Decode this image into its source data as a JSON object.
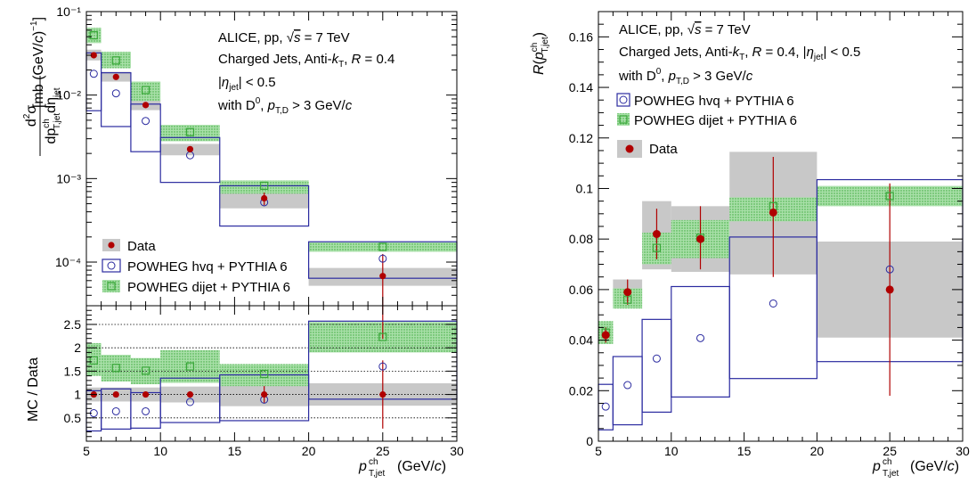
{
  "figure": {
    "colors": {
      "data": "#b00000",
      "hvq": "#2b2ba0",
      "dijet": "#3aa83a",
      "dijet_fill": "#7fd07f",
      "data_band": "#c8c8c8",
      "axis": "#000000"
    },
    "series_names": {
      "data": "Data",
      "hvq": "POWHEG hvq + PYTHIA 6",
      "dijet": "POWHEG dijet + PYTHIA 6"
    },
    "text": {
      "left_ylabel": "d²σ / dpT,jetch dηjet [mb (GeV/c)⁻¹]",
      "ratio_ylabel": "MC / Data",
      "right_ylabel": "R(pT,jetch)",
      "xlabel_main": "p",
      "xlabel_sup": "ch",
      "xlabel_sub": "T,jet",
      "xlabel_unit": "(GeV/c)",
      "ann_left_1": "ALICE, pp, √s = 7 TeV",
      "ann_left_2": "Charged Jets, Anti-kT, R = 0.4",
      "ann_left_3": "|ηjet| < 0.5",
      "ann_left_4": "with D⁰, pT,D > 3 GeV/c",
      "ann_right_1": "ALICE, pp, √s = 7 TeV",
      "ann_right_2": "Charged Jets, Anti-kT, R = 0.4, |ηjet| < 0.5",
      "ann_right_3": "with D⁰, pT,D > 3 GeV/c"
    }
  },
  "chart_data": [
    {
      "type": "scatter",
      "panel": "left-top",
      "yscale": "log",
      "xlim": [
        5,
        30
      ],
      "ylim": [
        3e-05,
        0.1
      ],
      "xticks": [
        5,
        10,
        15,
        20,
        25,
        30
      ],
      "yticks": [
        "10⁻⁴",
        "10⁻³",
        "10⁻²",
        "10⁻¹"
      ],
      "bins": [
        [
          5,
          6
        ],
        [
          6,
          8
        ],
        [
          8,
          10
        ],
        [
          10,
          14
        ],
        [
          14,
          20
        ],
        [
          20,
          30
        ]
      ],
      "centers": [
        5.5,
        7,
        9,
        12,
        17,
        25
      ],
      "series": [
        {
          "name": "Data",
          "values": [
            0.03,
            0.0165,
            0.0076,
            0.00225,
            0.00058,
            6.8e-05
          ],
          "syst_low": [
            0.026,
            0.0145,
            0.0066,
            0.0019,
            0.00044,
            5.2e-05
          ],
          "syst_high": [
            0.035,
            0.019,
            0.0088,
            0.0026,
            0.00072,
            8.5e-05
          ],
          "stat_low": [
            0.0285,
            0.0158,
            0.0072,
            0.0021,
            0.00048,
            1.2e-05
          ],
          "stat_high": [
            0.0315,
            0.0172,
            0.008,
            0.0024,
            0.00068,
            0.000125
          ]
        },
        {
          "name": "POWHEG hvq + PYTHIA 6",
          "values": [
            0.018,
            0.0105,
            0.0049,
            0.0019,
            0.00052,
            0.00011
          ],
          "band_low": [
            0.0065,
            0.0042,
            0.0021,
            0.0009,
            0.00027,
            6.4e-05
          ],
          "band_high": [
            0.032,
            0.0185,
            0.0078,
            0.0031,
            0.00082,
            0.000175
          ]
        },
        {
          "name": "POWHEG dijet + PYTHIA 6",
          "values": [
            0.052,
            0.026,
            0.0115,
            0.0036,
            0.00082,
            0.000152
          ],
          "band_low": [
            0.042,
            0.021,
            0.0085,
            0.0028,
            0.00066,
            0.000133
          ],
          "band_high": [
            0.064,
            0.033,
            0.0145,
            0.0044,
            0.00095,
            0.000172
          ]
        }
      ]
    },
    {
      "type": "scatter",
      "panel": "left-ratio",
      "ylabel": "MC / Data",
      "xlim": [
        5,
        30
      ],
      "ylim": [
        0,
        2.9
      ],
      "yticks": [
        0.5,
        1,
        1.5,
        2,
        2.5
      ],
      "xticks": [
        5,
        10,
        15,
        20,
        25,
        30
      ],
      "centers": [
        5.5,
        7,
        9,
        12,
        17,
        25
      ],
      "series": [
        {
          "name": "Data",
          "values": [
            1,
            1,
            1,
            1,
            1,
            1
          ],
          "band_low": [
            0.85,
            0.85,
            0.85,
            0.83,
            0.75,
            0.76
          ],
          "band_high": [
            1.15,
            1.15,
            1.15,
            1.17,
            1.25,
            1.24
          ],
          "stat_low": [
            0.95,
            0.96,
            0.94,
            0.93,
            0.82,
            0.27
          ],
          "stat_high": [
            1.05,
            1.04,
            1.06,
            1.07,
            1.18,
            1.73
          ]
        },
        {
          "name": "POWHEG hvq + PYTHIA 6",
          "values": [
            0.6,
            0.64,
            0.64,
            0.84,
            0.89,
            1.6
          ],
          "band_low": [
            0.22,
            0.26,
            0.28,
            0.4,
            0.44,
            0.9
          ],
          "band_high": [
            1.08,
            1.12,
            1.04,
            1.35,
            1.42,
            2.57
          ]
        },
        {
          "name": "POWHEG dijet + PYTHIA 6",
          "values": [
            1.73,
            1.57,
            1.51,
            1.6,
            1.44,
            2.23
          ],
          "band_low": [
            1.4,
            1.28,
            1.22,
            1.25,
            1.18,
            1.9
          ],
          "band_high": [
            2.1,
            1.85,
            1.78,
            1.95,
            1.65,
            2.55
          ]
        }
      ],
      "reference_lines": [
        0.5,
        1,
        1.5,
        2,
        2.5
      ]
    },
    {
      "type": "scatter",
      "panel": "right",
      "ylabel": "R(pT,jetch)",
      "xlim": [
        5,
        30
      ],
      "ylim": [
        0,
        0.17
      ],
      "yticks": [
        0,
        0.02,
        0.04,
        0.06,
        0.08,
        0.1,
        0.12,
        0.14,
        0.16
      ],
      "xticks": [
        5,
        10,
        15,
        20,
        25,
        30
      ],
      "bins": [
        [
          5,
          6
        ],
        [
          6,
          8
        ],
        [
          8,
          10
        ],
        [
          10,
          14
        ],
        [
          14,
          20
        ],
        [
          20,
          30
        ]
      ],
      "centers": [
        5.5,
        7,
        9,
        12,
        17,
        25
      ],
      "series": [
        {
          "name": "Data",
          "values": [
            0.042,
            0.059,
            0.082,
            0.08,
            0.0905,
            0.06
          ],
          "syst_low": [
            0.039,
            0.054,
            0.068,
            0.067,
            0.066,
            0.041
          ],
          "syst_high": [
            0.045,
            0.064,
            0.095,
            0.093,
            0.1145,
            0.079
          ],
          "stat_low": [
            0.039,
            0.054,
            0.072,
            0.068,
            0.065,
            0.018
          ],
          "stat_high": [
            0.045,
            0.064,
            0.092,
            0.093,
            0.1125,
            0.102
          ]
        },
        {
          "name": "POWHEG hvq + PYTHIA 6",
          "values": [
            0.0137,
            0.0222,
            0.0327,
            0.0408,
            0.0545,
            0.068
          ],
          "band_low": [
            0.0045,
            0.0065,
            0.0115,
            0.0175,
            0.0248,
            0.0315
          ],
          "band_high": [
            0.0225,
            0.0335,
            0.0482,
            0.0612,
            0.0808,
            0.1035
          ]
        },
        {
          "name": "POWHEG dijet + PYTHIA 6",
          "values": [
            0.043,
            0.056,
            0.0765,
            0.0805,
            0.093,
            0.097
          ],
          "band_low": [
            0.0385,
            0.0525,
            0.07,
            0.0725,
            0.087,
            0.093
          ],
          "band_high": [
            0.0475,
            0.0605,
            0.0825,
            0.0875,
            0.0965,
            0.101
          ]
        }
      ]
    }
  ]
}
